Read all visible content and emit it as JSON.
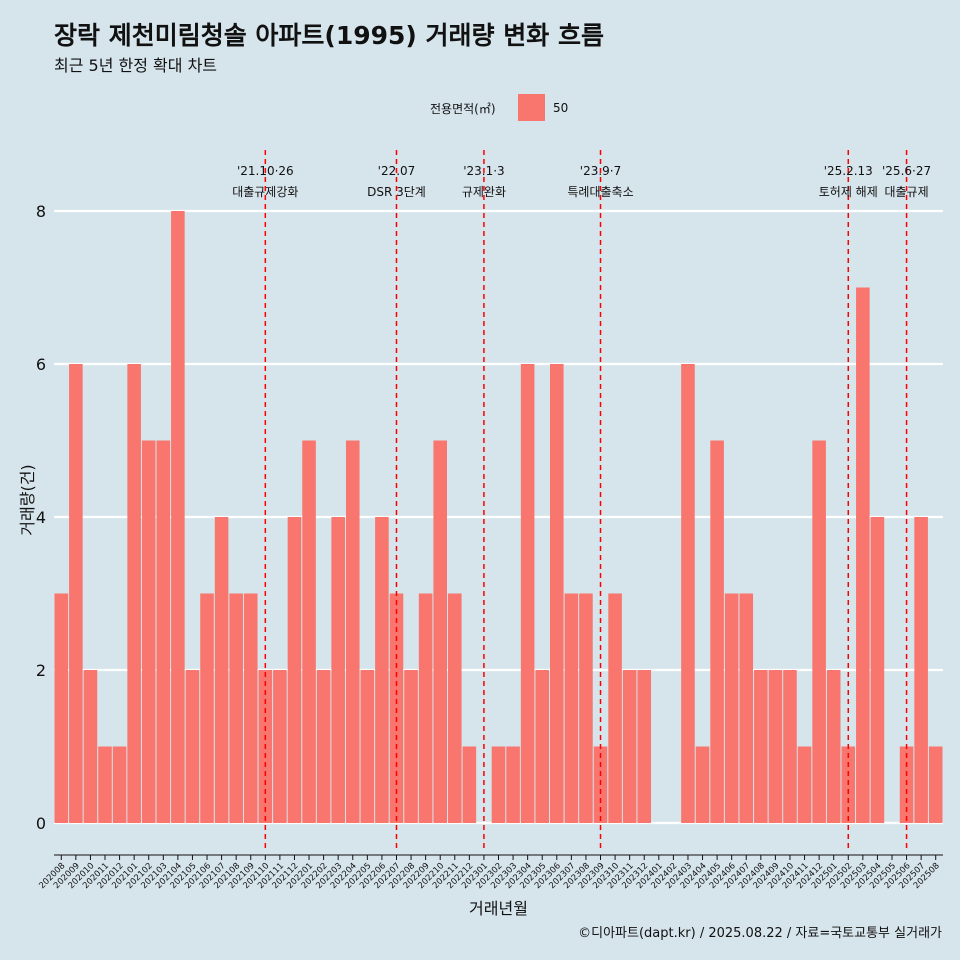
{
  "title": "장락 제천미림청솔 아파트(1995) 거래량 변화 흐름",
  "subtitle": "최근 5년 한정 확대 차트",
  "legend": {
    "title": "전용면적(㎡)",
    "label": "50"
  },
  "caption": "©디아파트(dapt.kr) / 2025.08.22 / 자료=국토교통부 실거래가",
  "colors": {
    "bar": "#f8766d",
    "background": "#d6e4ec",
    "grid": "#ffffff",
    "event_line": "#ff0000"
  },
  "chart_data": {
    "type": "bar",
    "xlabel": "거래년월",
    "ylabel": "거래량(건)",
    "ylim": [
      0,
      8
    ],
    "y_ticks": [
      0,
      2,
      4,
      6,
      8
    ],
    "grid": true,
    "legend_position": "top",
    "series": [
      {
        "name": "50"
      }
    ],
    "categories": [
      "202008",
      "202009",
      "202010",
      "202011",
      "202012",
      "202101",
      "202102",
      "202103",
      "202104",
      "202105",
      "202106",
      "202107",
      "202108",
      "202109",
      "202110",
      "202111",
      "202112",
      "202201",
      "202202",
      "202203",
      "202204",
      "202205",
      "202206",
      "202207",
      "202208",
      "202209",
      "202210",
      "202211",
      "202212",
      "202301",
      "202302",
      "202303",
      "202304",
      "202305",
      "202306",
      "202307",
      "202308",
      "202309",
      "202310",
      "202311",
      "202312",
      "202401",
      "202402",
      "202403",
      "202404",
      "202405",
      "202406",
      "202407",
      "202408",
      "202409",
      "202410",
      "202411",
      "202412",
      "202501",
      "202502",
      "202503",
      "202504",
      "202505",
      "202506",
      "202507",
      "202508"
    ],
    "values": [
      3,
      6,
      2,
      1,
      1,
      6,
      5,
      5,
      8,
      2,
      3,
      4,
      3,
      3,
      2,
      2,
      4,
      5,
      2,
      4,
      5,
      2,
      4,
      3,
      2,
      3,
      5,
      3,
      1,
      0,
      1,
      1,
      6,
      2,
      6,
      3,
      3,
      1,
      3,
      2,
      2,
      0,
      0,
      6,
      1,
      5,
      3,
      3,
      2,
      2,
      2,
      1,
      5,
      2,
      1,
      7,
      4,
      0,
      1,
      4,
      1
    ],
    "events": [
      {
        "date": "'21.10·26",
        "label": "대출규제강화",
        "category": "202110"
      },
      {
        "date": "'22.07",
        "label": "DSR 3단계",
        "category": "202207"
      },
      {
        "date": "'23.1·3",
        "label": "규제완화",
        "category": "202301"
      },
      {
        "date": "'23.9·7",
        "label": "특례대출축소",
        "category": "202309"
      },
      {
        "date": "'25.2.13",
        "label": "토허제 해제",
        "category": "202502"
      },
      {
        "date": "'25.6·27",
        "label": "대출규제",
        "category": "202506"
      }
    ]
  }
}
